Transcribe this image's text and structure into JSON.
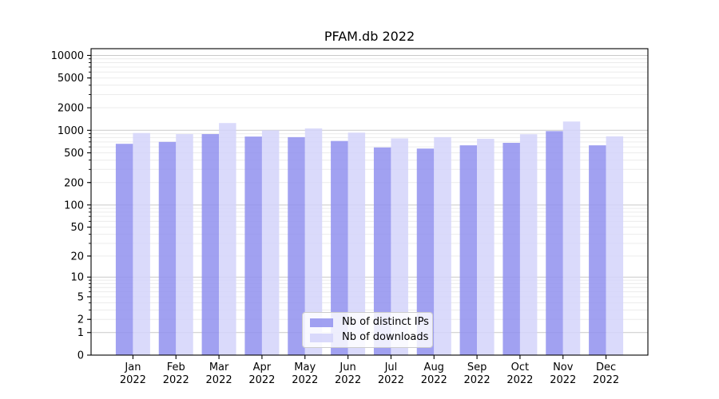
{
  "figure": {
    "background": "#ffffff"
  },
  "chart_data": {
    "type": "bar",
    "title": "PFAM.db 2022",
    "categories": [
      "Jan",
      "Feb",
      "Mar",
      "Apr",
      "May",
      "Jun",
      "Jul",
      "Aug",
      "Sep",
      "Oct",
      "Nov",
      "Dec"
    ],
    "x_year_label": "2022",
    "series": [
      {
        "name": "Nb of distinct IPs",
        "color": "#9090ee",
        "values": [
          660,
          700,
          890,
          825,
          810,
          720,
          590,
          570,
          630,
          680,
          975,
          630
        ]
      },
      {
        "name": "Nb of downloads",
        "color": "#d4d4fa",
        "values": [
          920,
          890,
          1250,
          1000,
          1060,
          930,
          780,
          810,
          770,
          885,
          1310,
          830
        ]
      }
    ],
    "bar_alpha": 0.85,
    "yscale": "log10(1+v)",
    "yticks": [
      0,
      1,
      2,
      5,
      10,
      20,
      50,
      100,
      200,
      500,
      1000,
      2000,
      5000,
      10000
    ],
    "ylim": [
      0,
      12300
    ],
    "xlabel": "",
    "ylabel": "",
    "grid": true,
    "grid_major_color": "#c9c9c9",
    "grid_minor_color": "#ececec",
    "spine_color": "#000000",
    "tick_label_color": "#000000",
    "legend_position": "lower center"
  }
}
